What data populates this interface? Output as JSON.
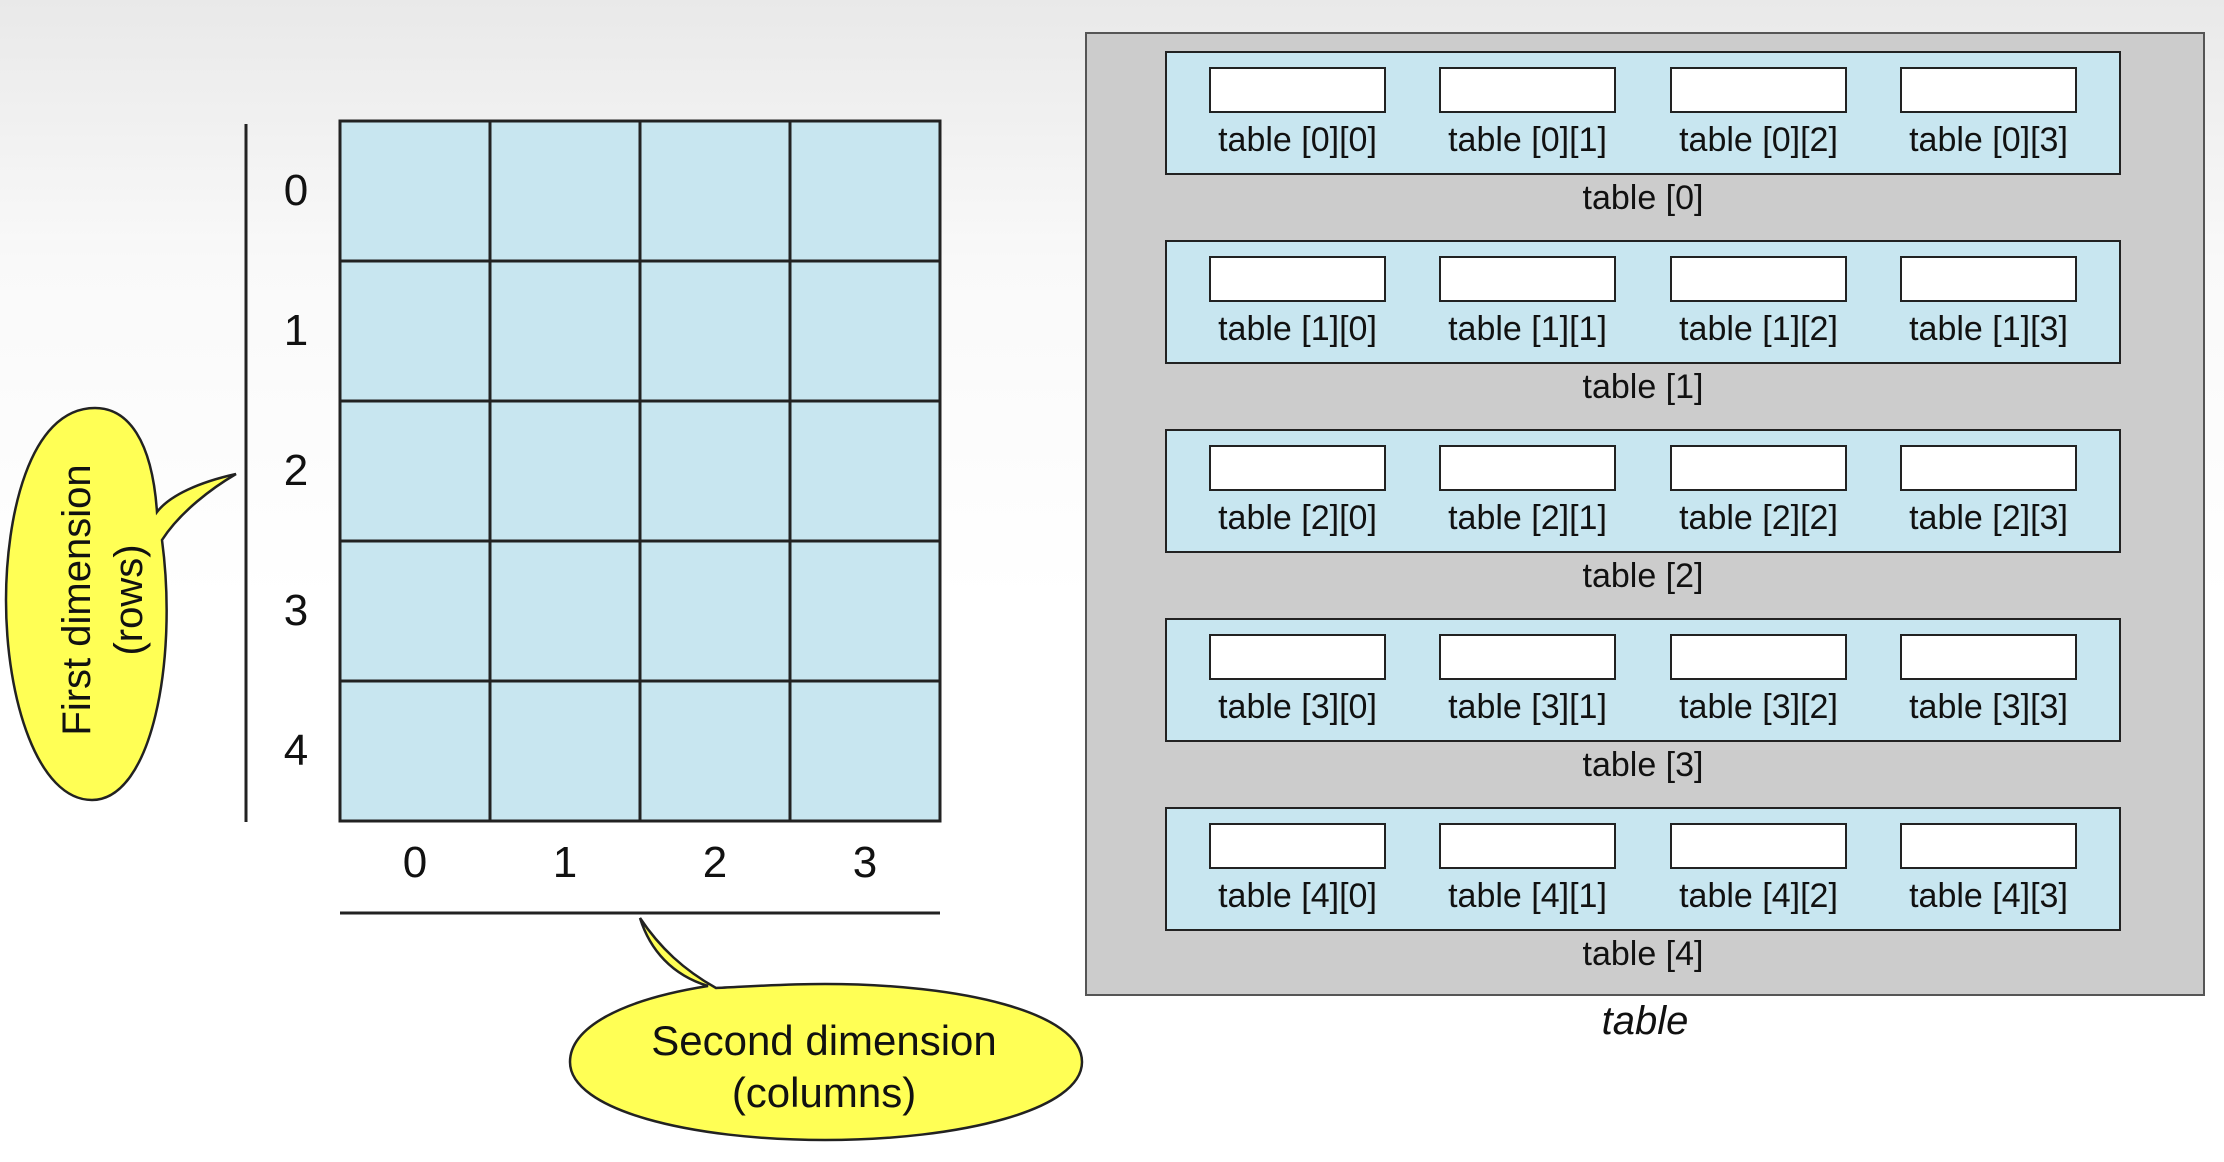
{
  "grid": {
    "rows": 5,
    "cols": 4,
    "row_labels": [
      "0",
      "1",
      "2",
      "3",
      "4"
    ],
    "col_labels": [
      "0",
      "1",
      "2",
      "3"
    ]
  },
  "callouts": {
    "rows": {
      "lines": [
        "First dimension",
        "(rows)"
      ]
    },
    "cols": {
      "lines": [
        "Second dimension",
        "(columns)"
      ]
    }
  },
  "table": {
    "caption": "table",
    "rows": [
      {
        "label": "table [0]",
        "cells": [
          "table [0][0]",
          "table [0][1]",
          "table [0][2]",
          "table [0][3]"
        ]
      },
      {
        "label": "table [1]",
        "cells": [
          "table [1][0]",
          "table [1][1]",
          "table [1][2]",
          "table [1][3]"
        ]
      },
      {
        "label": "table [2]",
        "cells": [
          "table [2][0]",
          "table [2][1]",
          "table [2][2]",
          "table [2][3]"
        ]
      },
      {
        "label": "table [3]",
        "cells": [
          "table [3][0]",
          "table [3][1]",
          "table [3][2]",
          "table [3][3]"
        ]
      },
      {
        "label": "table [4]",
        "cells": [
          "table [4][0]",
          "table [4][1]",
          "table [4][2]",
          "table [4][3]"
        ]
      }
    ]
  },
  "colors": {
    "cell_fill": "#c8e6f0",
    "panel_fill": "#cccccc",
    "callout_fill": "#ffff55",
    "line": "#222222"
  }
}
